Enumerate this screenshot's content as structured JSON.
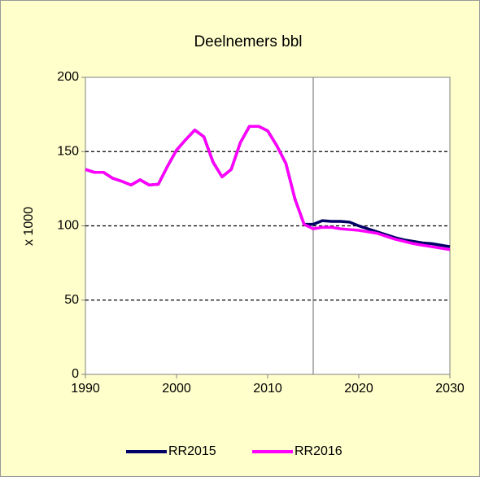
{
  "chart_data": {
    "type": "line",
    "title": "Deelnemers bbl",
    "y_label": "x 1000",
    "x": [
      1990,
      1991,
      1992,
      1993,
      1994,
      1995,
      1996,
      1997,
      1998,
      1999,
      2000,
      2001,
      2002,
      2003,
      2004,
      2005,
      2006,
      2007,
      2008,
      2009,
      2010,
      2011,
      2012,
      2013,
      2014,
      2015,
      2016,
      2017,
      2018,
      2019,
      2020,
      2021,
      2022,
      2023,
      2024,
      2025,
      2026,
      2027,
      2028,
      2029,
      2030
    ],
    "series": [
      {
        "name": "RR2015",
        "color": "#000066",
        "values": [
          138,
          136,
          136,
          132,
          130,
          127.5,
          131,
          127.5,
          128,
          140,
          151,
          158,
          164.5,
          160,
          143,
          133,
          138,
          156,
          167,
          167,
          164,
          154,
          142,
          118,
          101,
          101,
          103.5,
          103,
          103,
          102.5,
          100,
          98,
          96,
          94,
          92,
          90.5,
          89.5,
          88.5,
          88,
          87,
          86
        ]
      },
      {
        "name": "RR2016",
        "color": "#FF00FF",
        "values": [
          138,
          136,
          136,
          132,
          130,
          127.5,
          131,
          127.5,
          128,
          140,
          151,
          158,
          164.5,
          160,
          143,
          133,
          138,
          156,
          167,
          167,
          164,
          154,
          142,
          118,
          101,
          98,
          99,
          99,
          98,
          97.5,
          97,
          96,
          95,
          93,
          91,
          89.5,
          88,
          87,
          86,
          85,
          84
        ]
      }
    ],
    "xlim": [
      1990,
      2030
    ],
    "xticks": [
      1990,
      2000,
      2010,
      2020,
      2030
    ],
    "ylim": [
      0,
      200
    ],
    "yticks": [
      0,
      50,
      100,
      150,
      200
    ],
    "grid": true,
    "vline": 2015,
    "legend": "bottom"
  }
}
